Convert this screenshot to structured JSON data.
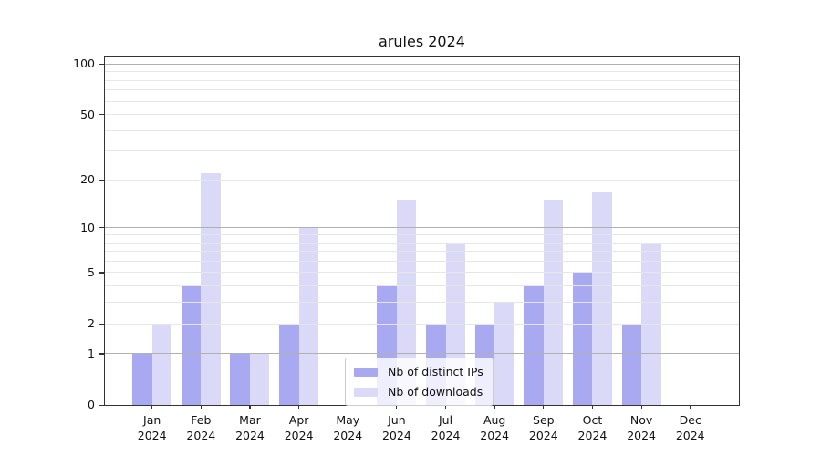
{
  "chart_data": {
    "type": "bar",
    "title": "arules 2024",
    "categories": [
      {
        "month": "Jan",
        "year": "2024"
      },
      {
        "month": "Feb",
        "year": "2024"
      },
      {
        "month": "Mar",
        "year": "2024"
      },
      {
        "month": "Apr",
        "year": "2024"
      },
      {
        "month": "May",
        "year": "2024"
      },
      {
        "month": "Jun",
        "year": "2024"
      },
      {
        "month": "Jul",
        "year": "2024"
      },
      {
        "month": "Aug",
        "year": "2024"
      },
      {
        "month": "Sep",
        "year": "2024"
      },
      {
        "month": "Oct",
        "year": "2024"
      },
      {
        "month": "Nov",
        "year": "2024"
      },
      {
        "month": "Dec",
        "year": "2024"
      }
    ],
    "series": [
      {
        "name": "Nb of distinct IPs",
        "color": "#a9a9f2",
        "values": [
          1,
          4,
          1,
          2,
          0,
          4,
          2,
          2,
          4,
          5,
          2,
          0
        ]
      },
      {
        "name": "Nb of downloads",
        "color": "#dadaf8",
        "values": [
          2,
          22,
          1,
          10,
          0,
          15,
          8,
          3,
          15,
          17,
          8,
          0
        ]
      }
    ],
    "xlabel": "",
    "ylabel": "",
    "y_axis": {
      "scale": "log1p",
      "ylim": [
        0,
        110.7
      ],
      "tick_values": [
        100,
        50,
        20,
        10,
        5,
        2,
        1,
        0
      ],
      "tick_labels": [
        "100",
        "50",
        "20",
        "10",
        "5",
        "2",
        "1",
        "0"
      ],
      "major_gridlines": [
        1,
        10,
        100
      ],
      "minor_gridlines": [
        2,
        3,
        4,
        5,
        6,
        7,
        8,
        9,
        20,
        30,
        40,
        50,
        60,
        70,
        80,
        90
      ]
    },
    "grid": true,
    "legend_position": "lower center",
    "colors": {
      "major_grid": "#b0b0b0",
      "minor_grid": "#e6e6e6",
      "axis": "#333333"
    }
  }
}
